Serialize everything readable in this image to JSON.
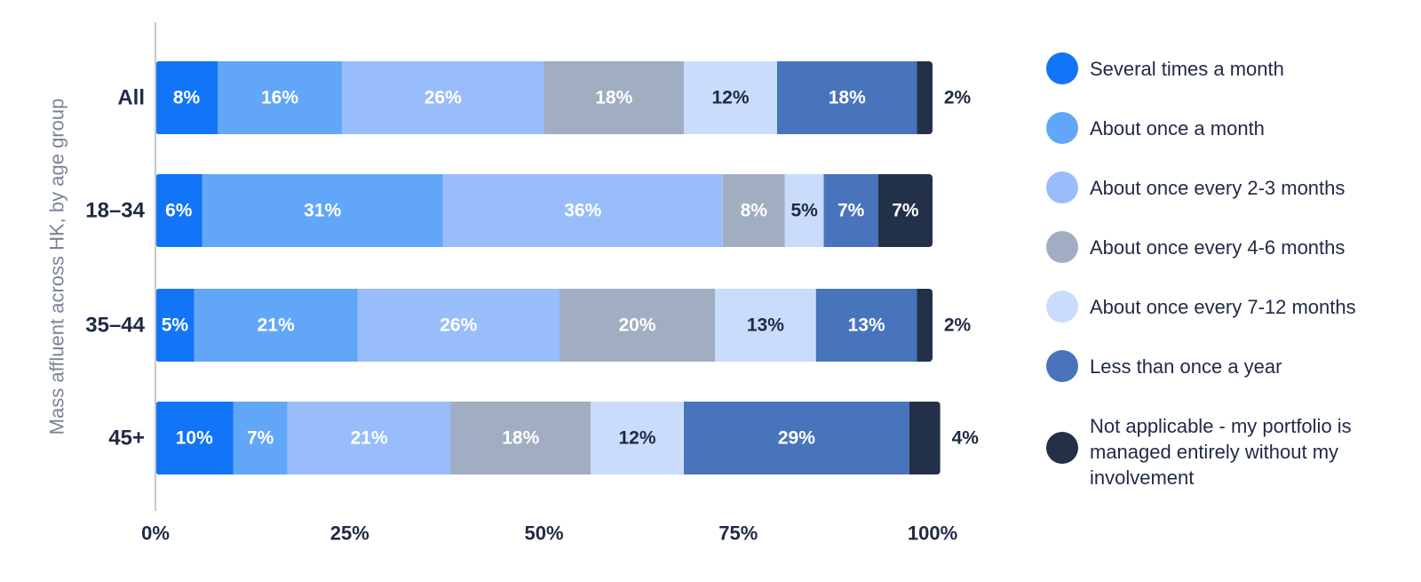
{
  "chart_data": {
    "type": "bar",
    "orientation": "horizontal",
    "stacked": true,
    "ylabel": "Mass affluent across HK, by age group",
    "xlabel": "",
    "xlim": [
      0,
      100
    ],
    "xticks": [
      "0%",
      "25%",
      "50%",
      "75%",
      "100%"
    ],
    "categories": [
      "All",
      "18–34",
      "35–44",
      "45+"
    ],
    "series": [
      {
        "name": "Several times a month",
        "color": "#1274f7",
        "text_color": "#ffffff",
        "values": [
          8,
          6,
          5,
          10
        ],
        "labels": [
          "8%",
          "6%",
          "5%",
          "10%"
        ]
      },
      {
        "name": "About once a month",
        "color": "#62a6f8",
        "text_color": "#ffffff",
        "values": [
          16,
          31,
          21,
          7
        ],
        "labels": [
          "16%",
          "31%",
          "21%",
          "7%"
        ]
      },
      {
        "name": "About once every 2-3 months",
        "color": "#98bdfa",
        "text_color": "#ffffff",
        "values": [
          26,
          36,
          26,
          21
        ],
        "labels": [
          "26%",
          "36%",
          "26%",
          "21%"
        ]
      },
      {
        "name": "About once every 4-6 months",
        "color": "#a1adc0",
        "text_color": "#ffffff",
        "values": [
          18,
          8,
          20,
          18
        ],
        "labels": [
          "18%",
          "8%",
          "20%",
          "18%"
        ]
      },
      {
        "name": "About once every 7-12 months",
        "color": "#cadcfc",
        "text_color": "#1f2a44",
        "values": [
          12,
          5,
          13,
          12
        ],
        "labels": [
          "12%",
          "5%",
          "13%",
          "12%"
        ]
      },
      {
        "name": "Less than once a year",
        "color": "#4874bb",
        "text_color": "#ffffff",
        "values": [
          18,
          7,
          13,
          29
        ],
        "labels": [
          "18%",
          "7%",
          "13%",
          "29%"
        ]
      },
      {
        "name": "Not applicable - my portfolio is managed entirely without my involvement",
        "color": "#233148",
        "text_color": "#ffffff",
        "values": [
          2,
          7,
          2,
          4
        ],
        "labels": [
          "2%",
          "7%",
          "2%",
          "4%"
        ]
      }
    ],
    "legend_position": "right",
    "grid": false
  }
}
